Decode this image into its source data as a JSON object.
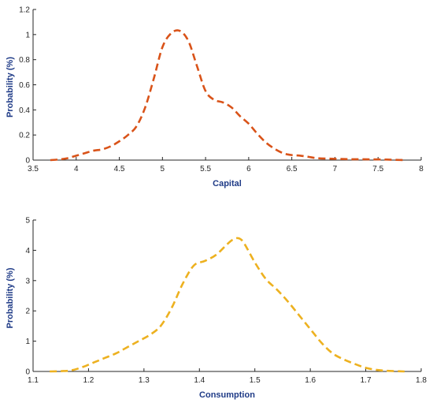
{
  "chart_data": [
    {
      "type": "line",
      "xlabel": "Capital",
      "ylabel": "Probability (%)",
      "xlim": [
        3.5,
        8
      ],
      "ylim": [
        0,
        1.2
      ],
      "xticks": [
        "3.5",
        "4",
        "4.5",
        "5",
        "5.5",
        "6",
        "6.5",
        "7",
        "7.5",
        "8"
      ],
      "yticks": [
        "0",
        "0.2",
        "0.4",
        "0.6",
        "0.8",
        "1",
        "1.2"
      ],
      "grid": false,
      "series": [
        {
          "color": "#D95319",
          "style": "dashed",
          "x": [
            3.7,
            3.8,
            3.9,
            4.0,
            4.1,
            4.2,
            4.3,
            4.4,
            4.5,
            4.6,
            4.7,
            4.8,
            4.9,
            5.0,
            5.1,
            5.2,
            5.3,
            5.4,
            5.5,
            5.6,
            5.7,
            5.8,
            5.9,
            6.0,
            6.1,
            6.2,
            6.3,
            6.4,
            6.5,
            6.6,
            6.7,
            6.8,
            7.0,
            7.2,
            7.4,
            7.6,
            7.8
          ],
          "y": [
            0.0,
            0.005,
            0.015,
            0.035,
            0.055,
            0.075,
            0.085,
            0.11,
            0.15,
            0.2,
            0.27,
            0.42,
            0.65,
            0.9,
            1.01,
            1.03,
            0.95,
            0.75,
            0.55,
            0.48,
            0.46,
            0.42,
            0.35,
            0.29,
            0.21,
            0.14,
            0.09,
            0.055,
            0.04,
            0.035,
            0.025,
            0.015,
            0.01,
            0.007,
            0.006,
            0.004,
            0.0
          ]
        }
      ]
    },
    {
      "type": "line",
      "xlabel": "Consumption",
      "ylabel": "Probability (%)",
      "xlim": [
        1.1,
        1.8
      ],
      "ylim": [
        0,
        5
      ],
      "xticks": [
        "1.1",
        "1.2",
        "1.3",
        "1.4",
        "1.5",
        "1.6",
        "1.7",
        "1.8"
      ],
      "yticks": [
        "0",
        "1",
        "2",
        "3",
        "4",
        "5"
      ],
      "grid": false,
      "series": [
        {
          "color": "#EDB120",
          "style": "dashed",
          "x": [
            1.13,
            1.15,
            1.17,
            1.19,
            1.21,
            1.23,
            1.25,
            1.27,
            1.29,
            1.31,
            1.33,
            1.35,
            1.37,
            1.39,
            1.41,
            1.43,
            1.45,
            1.46,
            1.47,
            1.48,
            1.5,
            1.52,
            1.54,
            1.56,
            1.58,
            1.6,
            1.62,
            1.64,
            1.66,
            1.68,
            1.7,
            1.72,
            1.74,
            1.77
          ],
          "y": [
            0.0,
            0.01,
            0.04,
            0.15,
            0.3,
            0.45,
            0.6,
            0.8,
            1.0,
            1.2,
            1.5,
            2.1,
            2.9,
            3.5,
            3.65,
            3.85,
            4.2,
            4.35,
            4.4,
            4.25,
            3.6,
            3.05,
            2.7,
            2.3,
            1.85,
            1.4,
            0.95,
            0.6,
            0.4,
            0.25,
            0.12,
            0.05,
            0.02,
            0.0
          ]
        }
      ]
    }
  ]
}
